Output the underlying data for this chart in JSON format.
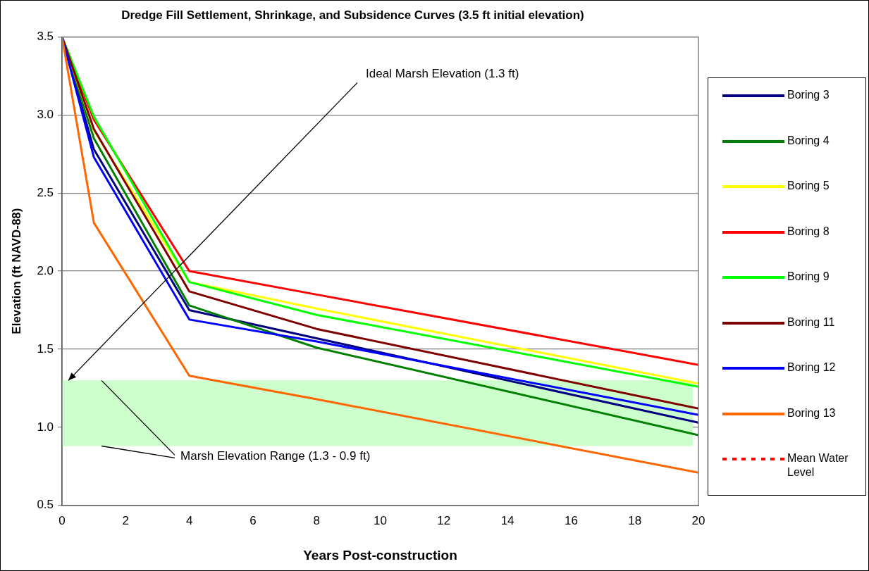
{
  "chart_data": {
    "type": "line",
    "title": "Dredge Fill Settlement, Shrinkage, and Subsidence Curves (3.5 ft initial elevation)",
    "xlabel": "Years Post-construction",
    "ylabel": "Elevation (ft NAVD-88)",
    "x": [
      0,
      1,
      4,
      8,
      20
    ],
    "series": [
      {
        "name": "Boring 3",
        "color": "#000080",
        "values": [
          3.5,
          2.78,
          1.75,
          1.57,
          1.03
        ]
      },
      {
        "name": "Boring 4",
        "color": "#008000",
        "values": [
          3.5,
          2.85,
          1.78,
          1.51,
          0.95
        ]
      },
      {
        "name": "Boring 5",
        "color": "#ffff00",
        "values": [
          3.5,
          2.9,
          1.93,
          1.76,
          1.28
        ]
      },
      {
        "name": "Boring 8",
        "color": "#ff0000",
        "values": [
          3.5,
          2.97,
          2.0,
          1.85,
          1.4
        ]
      },
      {
        "name": "Boring 9",
        "color": "#00ff00",
        "values": [
          3.5,
          2.99,
          1.93,
          1.72,
          1.26
        ]
      },
      {
        "name": "Boring 11",
        "color": "#800000",
        "values": [
          3.5,
          2.91,
          1.87,
          1.63,
          1.12
        ]
      },
      {
        "name": "Boring 12",
        "color": "#0000ff",
        "values": [
          3.5,
          2.73,
          1.69,
          1.55,
          1.08
        ]
      },
      {
        "name": "Boring 13",
        "color": "#ff6600",
        "values": [
          3.5,
          2.31,
          1.33,
          1.18,
          0.71
        ]
      },
      {
        "name": "Mean Water Level",
        "color": "#ff0000",
        "line_style": "dashed",
        "values": [
          null,
          null,
          null,
          null,
          null
        ]
      }
    ],
    "xlim": [
      0,
      20
    ],
    "xticks": [
      0,
      2,
      4,
      6,
      8,
      10,
      12,
      14,
      16,
      18,
      20
    ],
    "ylim": [
      0.5,
      3.5
    ],
    "yticks": [
      {
        "value": 0.5,
        "label": "0.5"
      },
      {
        "value": 1,
        "label": "1.0"
      },
      {
        "value": 1.5,
        "label": "1.5"
      },
      {
        "value": 2,
        "label": "2.0"
      },
      {
        "value": 2.5,
        "label": "2.5"
      },
      {
        "value": 3,
        "label": "3.0"
      },
      {
        "value": 3.5,
        "label": "3.5"
      }
    ],
    "bands": [
      {
        "axis": "y",
        "from": 0.88,
        "to": 1.3,
        "label": "Marsh Elevation Range (1.3 - 0.9 ft)",
        "color": "#ccffcc"
      }
    ],
    "annotations": [
      {
        "text": "Ideal Marsh Elevation (1.3 ft)",
        "x": 0.2,
        "y": 1.3
      }
    ],
    "grid": "y",
    "legend": "right",
    "marker": "none",
    "line_style": "solid"
  }
}
